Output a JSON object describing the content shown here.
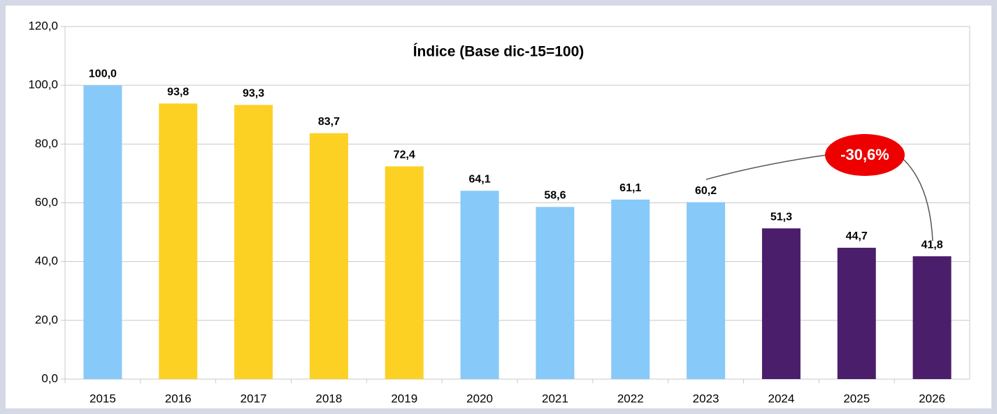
{
  "chart_data": {
    "type": "bar",
    "title": "Índice (Base dic-15=100)",
    "categories": [
      "2015",
      "2016",
      "2017",
      "2018",
      "2019",
      "2020",
      "2021",
      "2022",
      "2023",
      "2024",
      "2025",
      "2026"
    ],
    "values": [
      100.0,
      93.8,
      93.3,
      83.7,
      72.4,
      64.1,
      58.6,
      61.1,
      60.2,
      51.3,
      44.7,
      41.8
    ],
    "value_labels": [
      "100,0",
      "93,8",
      "93,3",
      "83,7",
      "72,4",
      "64,1",
      "58,6",
      "61,1",
      "60,2",
      "51,3",
      "44,7",
      "41,8"
    ],
    "colors": [
      "#87c9f9",
      "#fdd024",
      "#fdd024",
      "#fdd024",
      "#fdd024",
      "#87c9f9",
      "#87c9f9",
      "#87c9f9",
      "#87c9f9",
      "#4b1e6b",
      "#4b1e6b",
      "#4b1e6b"
    ],
    "ylim": [
      0,
      120
    ],
    "yticks": [
      {
        "value": 0,
        "label": "0,0"
      },
      {
        "value": 20,
        "label": "20,0"
      },
      {
        "value": 40,
        "label": "40,0"
      },
      {
        "value": 60,
        "label": "60,0"
      },
      {
        "value": 80,
        "label": "80,0"
      },
      {
        "value": 100,
        "label": "100,0"
      },
      {
        "value": 120,
        "label": "120,0"
      }
    ],
    "grid": true,
    "annotation": "-30,6%"
  }
}
